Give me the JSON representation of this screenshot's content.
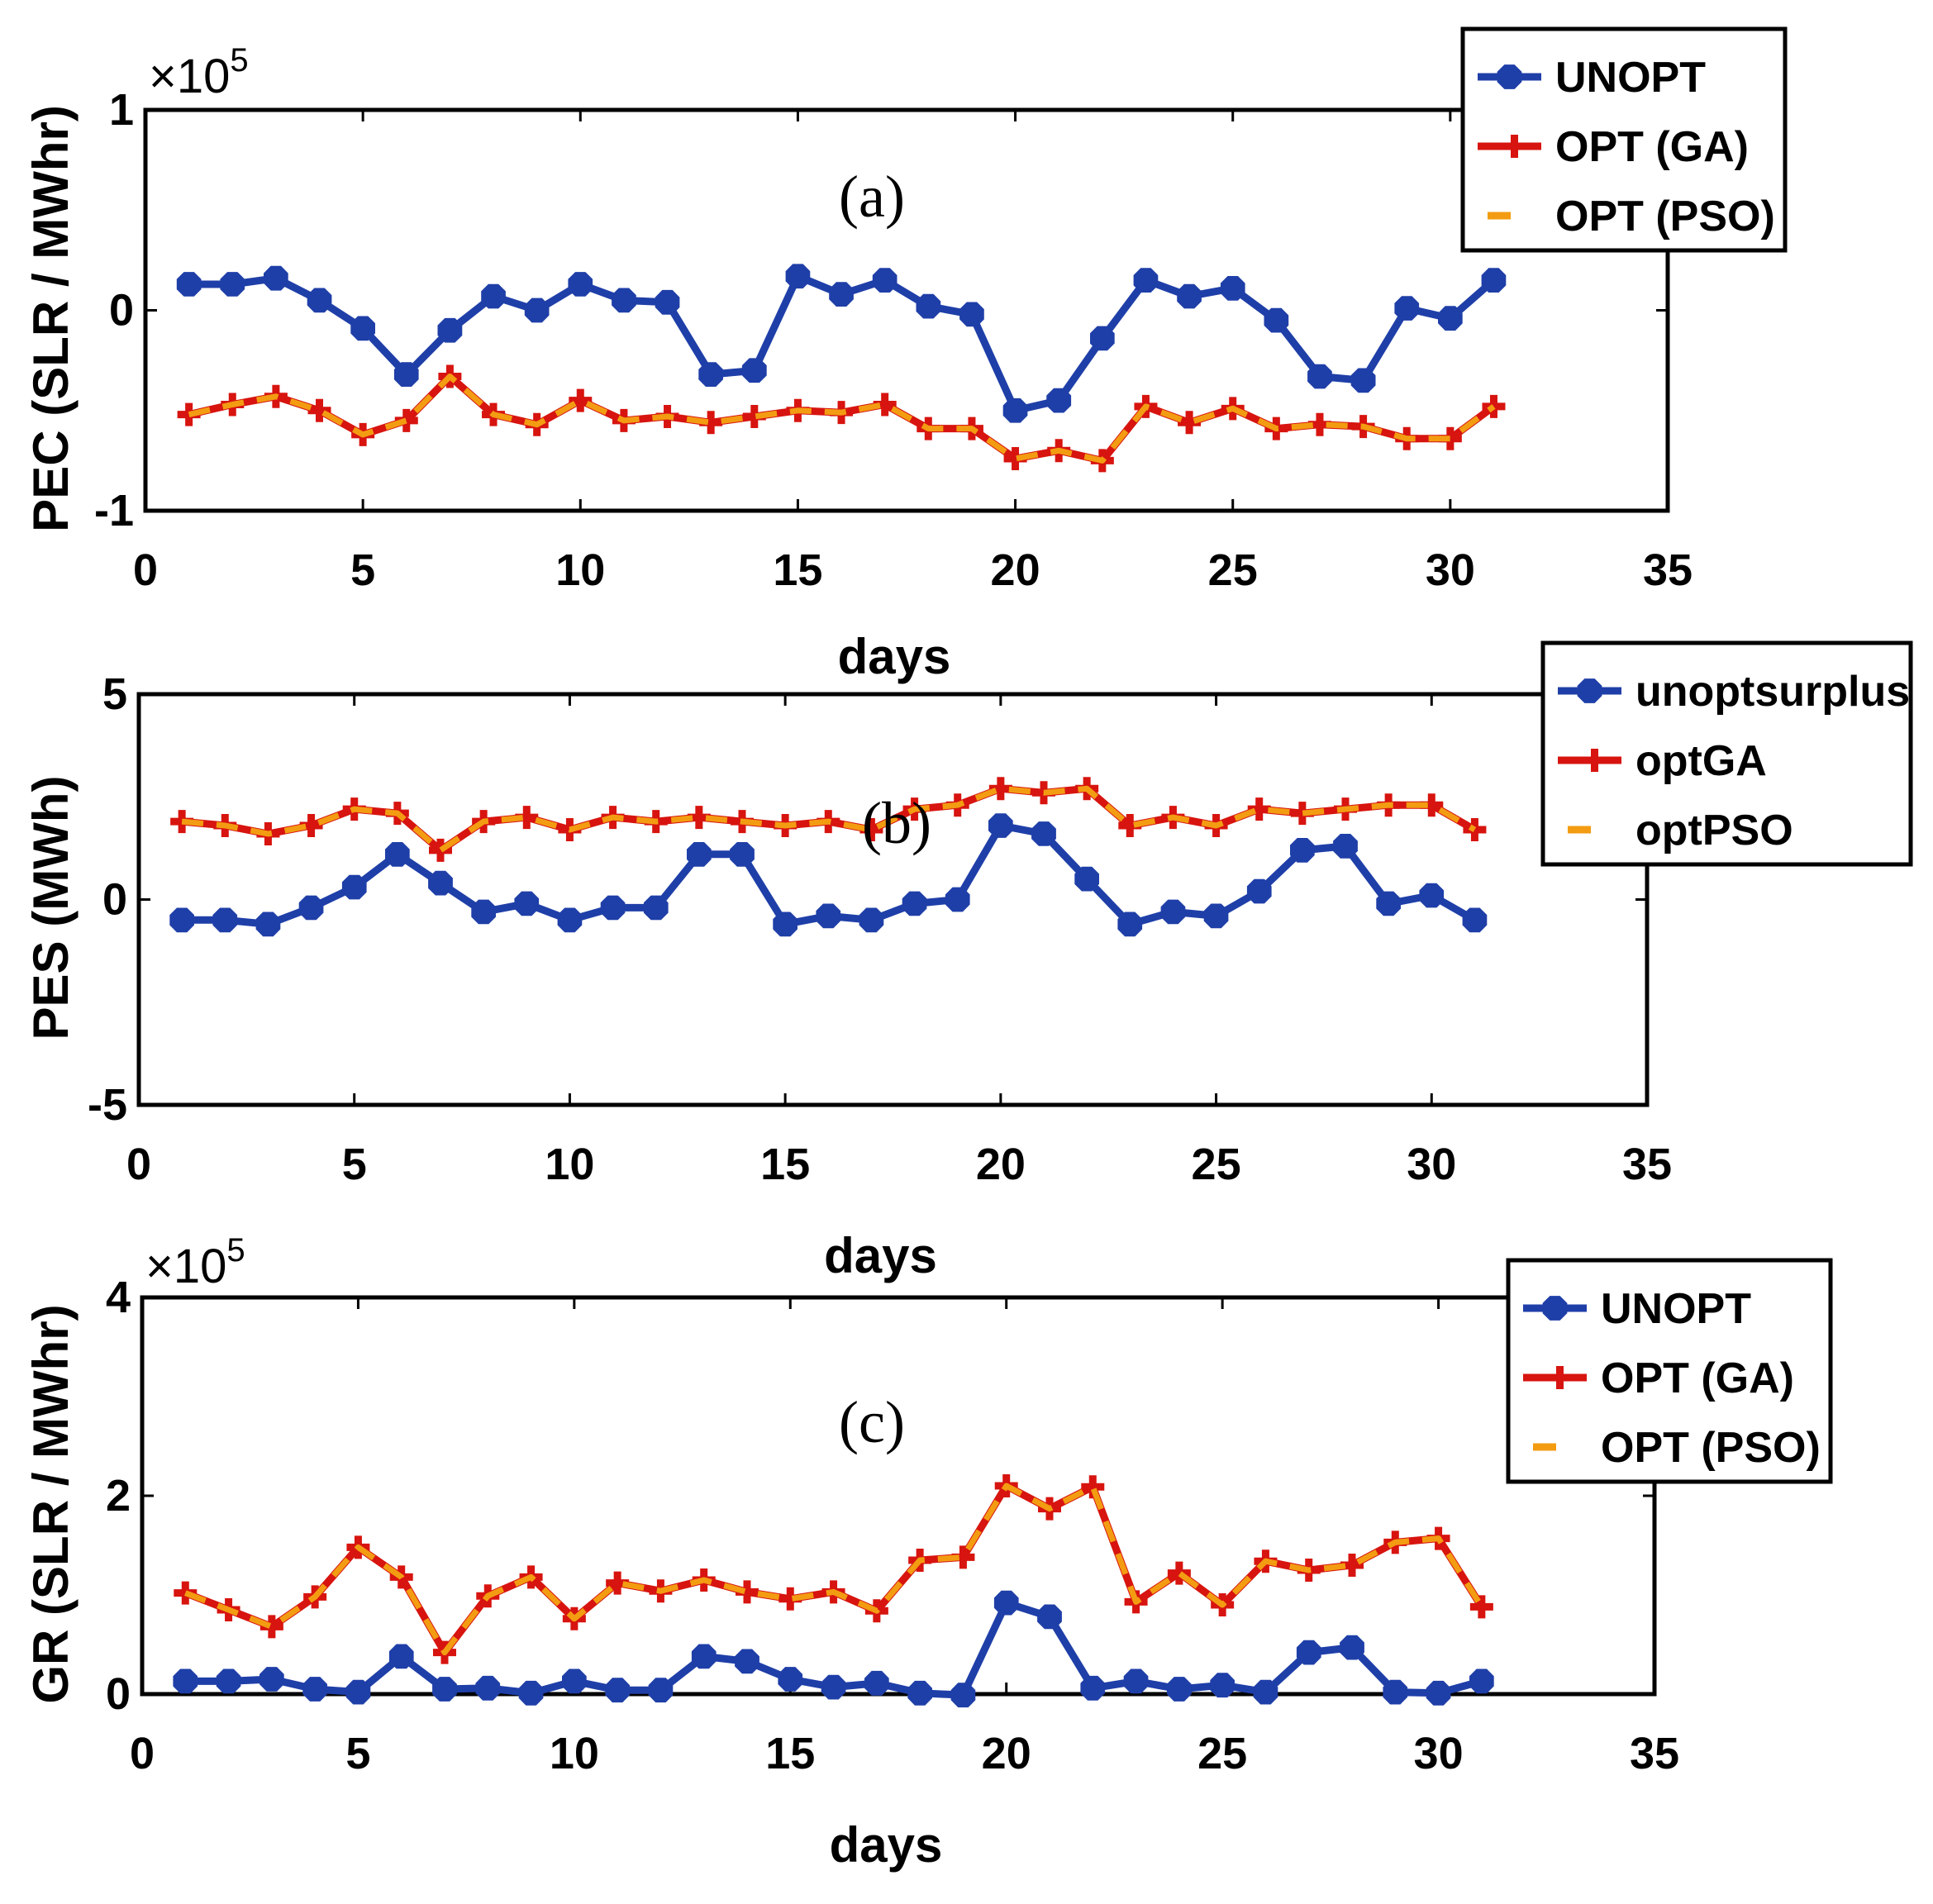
{
  "figure": {
    "colors": {
      "unopt": "#1f3fa8",
      "ga": "#d7140f",
      "pso": "#f39c12",
      "axis": "#000000"
    }
  },
  "chart_data": [
    {
      "type": "line",
      "panel_label": "(a)",
      "xlabel": "days",
      "ylabel": "PEC (SLR / MWhr)",
      "multiplier": "×10",
      "multiplier_exp": "5",
      "xlim": [
        0,
        35
      ],
      "ylim": [
        -1,
        1
      ],
      "xticks": [
        0,
        5,
        10,
        15,
        20,
        25,
        30,
        35
      ],
      "yticks": [
        -1,
        0,
        1
      ],
      "legend_position": "top-right",
      "x": [
        1,
        2,
        3,
        4,
        5,
        6,
        7,
        8,
        9,
        10,
        11,
        12,
        13,
        14,
        15,
        16,
        17,
        18,
        19,
        20,
        21,
        22,
        23,
        24,
        25,
        26,
        27,
        28,
        29,
        30,
        31
      ],
      "series": [
        {
          "name": "UNOPT",
          "style": "unopt",
          "values": [
            0.13,
            0.13,
            0.16,
            0.05,
            -0.09,
            -0.32,
            -0.1,
            0.07,
            0.0,
            0.13,
            0.05,
            0.04,
            -0.32,
            -0.3,
            0.17,
            0.08,
            0.15,
            0.02,
            -0.02,
            -0.5,
            -0.45,
            -0.14,
            0.15,
            0.07,
            0.11,
            -0.05,
            -0.33,
            -0.35,
            0.01,
            -0.04,
            0.15
          ]
        },
        {
          "name": "OPT (GA)",
          "style": "ga",
          "values": [
            -0.52,
            -0.47,
            -0.43,
            -0.5,
            -0.62,
            -0.55,
            -0.33,
            -0.52,
            -0.57,
            -0.45,
            -0.55,
            -0.53,
            -0.56,
            -0.53,
            -0.5,
            -0.51,
            -0.47,
            -0.59,
            -0.59,
            -0.74,
            -0.7,
            -0.75,
            -0.48,
            -0.56,
            -0.49,
            -0.59,
            -0.57,
            -0.58,
            -0.64,
            -0.64,
            -0.48
          ]
        },
        {
          "name": "OPT (PSO)",
          "style": "pso",
          "values": [
            -0.52,
            -0.47,
            -0.43,
            -0.5,
            -0.62,
            -0.55,
            -0.33,
            -0.52,
            -0.57,
            -0.45,
            -0.55,
            -0.53,
            -0.56,
            -0.53,
            -0.5,
            -0.51,
            -0.47,
            -0.59,
            -0.59,
            -0.74,
            -0.7,
            -0.75,
            -0.48,
            -0.56,
            -0.49,
            -0.59,
            -0.57,
            -0.58,
            -0.64,
            -0.64,
            -0.48
          ]
        }
      ]
    },
    {
      "type": "line",
      "panel_label": "(b)",
      "xlabel": "days",
      "ylabel": "PES (MWh)",
      "multiplier": "",
      "multiplier_exp": "",
      "xlim": [
        0,
        35
      ],
      "ylim": [
        -5,
        5
      ],
      "xticks": [
        0,
        5,
        10,
        15,
        20,
        25,
        30,
        35
      ],
      "yticks": [
        -5,
        0,
        5
      ],
      "legend_position": "top-right",
      "x": [
        1,
        2,
        3,
        4,
        5,
        6,
        7,
        8,
        9,
        10,
        11,
        12,
        13,
        14,
        15,
        16,
        17,
        18,
        19,
        20,
        21,
        22,
        23,
        24,
        25,
        26,
        27,
        28,
        29,
        30,
        31
      ],
      "series": [
        {
          "name": "unoptsurplus",
          "style": "unopt",
          "values": [
            -0.5,
            -0.5,
            -0.6,
            -0.2,
            0.3,
            1.1,
            0.4,
            -0.3,
            -0.1,
            -0.5,
            -0.2,
            -0.2,
            1.1,
            1.1,
            -0.6,
            -0.4,
            -0.5,
            -0.1,
            0.0,
            1.8,
            1.6,
            0.5,
            -0.6,
            -0.3,
            -0.4,
            0.2,
            1.2,
            1.3,
            -0.1,
            0.1,
            -0.5
          ]
        },
        {
          "name": "optGA",
          "style": "ga",
          "values": [
            1.9,
            1.8,
            1.6,
            1.8,
            2.2,
            2.1,
            1.2,
            1.9,
            2.0,
            1.7,
            2.0,
            1.9,
            2.0,
            1.9,
            1.8,
            1.9,
            1.7,
            2.2,
            2.3,
            2.7,
            2.6,
            2.7,
            1.8,
            2.0,
            1.8,
            2.2,
            2.1,
            2.2,
            2.3,
            2.3,
            1.7
          ]
        },
        {
          "name": "optPSO",
          "style": "pso",
          "values": [
            1.9,
            1.8,
            1.6,
            1.8,
            2.2,
            2.1,
            1.2,
            1.9,
            2.0,
            1.7,
            2.0,
            1.9,
            2.0,
            1.9,
            1.8,
            1.9,
            1.7,
            2.2,
            2.3,
            2.7,
            2.6,
            2.7,
            1.8,
            2.0,
            1.8,
            2.2,
            2.1,
            2.2,
            2.3,
            2.3,
            1.7
          ]
        }
      ]
    },
    {
      "type": "line",
      "panel_label": "(c)",
      "xlabel": "days",
      "ylabel": "GR (SLR / MWhr)",
      "multiplier": "×10",
      "multiplier_exp": "5",
      "xlim": [
        0,
        35
      ],
      "ylim": [
        0,
        4
      ],
      "xticks": [
        0,
        5,
        10,
        15,
        20,
        25,
        30,
        35
      ],
      "yticks": [
        0,
        2,
        4
      ],
      "legend_position": "top-right",
      "x": [
        1,
        2,
        3,
        4,
        5,
        6,
        7,
        8,
        9,
        10,
        11,
        12,
        13,
        14,
        15,
        16,
        17,
        18,
        19,
        20,
        21,
        22,
        23,
        24,
        25,
        26,
        27,
        28,
        29,
        30,
        31
      ],
      "series": [
        {
          "name": "UNOPT",
          "style": "unopt",
          "values": [
            0.13,
            0.13,
            0.15,
            0.05,
            0.02,
            0.38,
            0.05,
            0.06,
            0.01,
            0.13,
            0.04,
            0.04,
            0.38,
            0.33,
            0.15,
            0.07,
            0.11,
            0.01,
            -0.01,
            0.92,
            0.78,
            0.06,
            0.13,
            0.05,
            0.09,
            0.02,
            0.42,
            0.47,
            0.02,
            0.01,
            0.13
          ]
        },
        {
          "name": "OPT (GA)",
          "style": "ga",
          "values": [
            1.02,
            0.85,
            0.68,
            0.98,
            1.48,
            1.18,
            0.42,
            0.99,
            1.18,
            0.76,
            1.12,
            1.04,
            1.15,
            1.03,
            0.96,
            1.03,
            0.84,
            1.35,
            1.38,
            2.1,
            1.87,
            2.09,
            0.93,
            1.22,
            0.9,
            1.34,
            1.25,
            1.3,
            1.53,
            1.57,
            0.88
          ]
        },
        {
          "name": "OPT (PSO)",
          "style": "pso",
          "values": [
            1.02,
            0.85,
            0.68,
            0.98,
            1.48,
            1.18,
            0.42,
            0.99,
            1.18,
            0.76,
            1.12,
            1.04,
            1.15,
            1.03,
            0.96,
            1.03,
            0.84,
            1.35,
            1.38,
            2.1,
            1.87,
            2.09,
            0.93,
            1.22,
            0.9,
            1.34,
            1.25,
            1.3,
            1.53,
            1.57,
            0.88
          ]
        }
      ]
    }
  ]
}
